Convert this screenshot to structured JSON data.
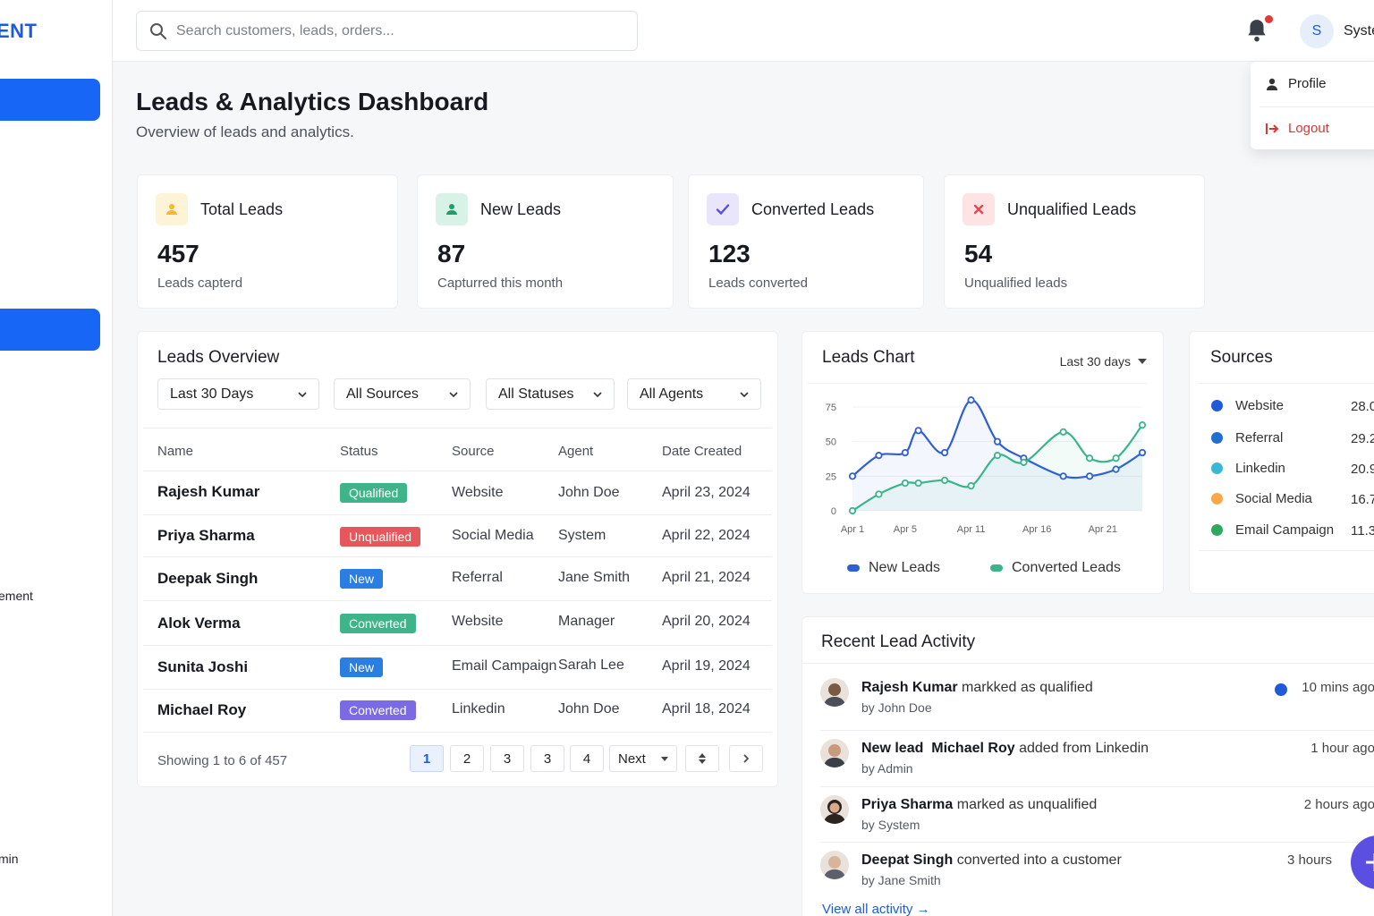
{
  "sidebar": {
    "brand": "ENT",
    "items": [
      {
        "label": "ement"
      },
      {
        "label": "min"
      }
    ]
  },
  "topbar": {
    "search_placeholder": "Search customers, leads, orders...",
    "avatar_initial": "S",
    "user_name": "Syste",
    "menu": {
      "profile": "Profile",
      "logout": "Logout"
    }
  },
  "header": {
    "title": "Leads & Analytics Dashboard",
    "subtitle": "Overview of leads and analytics."
  },
  "stats": [
    {
      "label": "Total Leads",
      "value": "457",
      "desc": "Leads capterd",
      "icon": "user-icon",
      "color": "#f5b82e"
    },
    {
      "label": "New Leads",
      "value": "87",
      "desc": "Capturred this month",
      "icon": "user-icon",
      "color": "#1e9e6a"
    },
    {
      "label": "Converted Leads",
      "value": "123",
      "desc": "Leads converted",
      "icon": "check-icon",
      "color": "#5a4fe0"
    },
    {
      "label": "Unqualified Leads",
      "value": "54",
      "desc": "Unqualified leads",
      "icon": "x-icon",
      "color": "#e5484d"
    }
  ],
  "overview": {
    "title": "Leads Overview",
    "filters": [
      "Last 30 Days",
      "All Sources",
      "All Statuses",
      "All Agents"
    ],
    "columns": [
      "Name",
      "Status",
      "Source",
      "Agent",
      "Date Created"
    ],
    "rows": [
      {
        "name": "Rajesh Kumar",
        "status": "Qualified",
        "status_color": "#3fb48a",
        "source": "Website",
        "agent": "John Doe",
        "date": "April 23, 2024"
      },
      {
        "name": "Priya Sharma",
        "status": "Unqualified",
        "status_color": "#e5575b",
        "source": "Social Media",
        "agent": "System",
        "date": "April 22, 2024"
      },
      {
        "name": "Deepak Singh",
        "status": "New",
        "status_color": "#2a7de1",
        "source": "Referral",
        "agent": "Jane Smith",
        "date": "April 21, 2024"
      },
      {
        "name": "Alok Verma",
        "status": "Converted",
        "status_color": "#3fb48a",
        "source": "Website",
        "agent": "Manager",
        "date": "April 20, 2024"
      },
      {
        "name": "Sunita Joshi",
        "status": "New",
        "status_color": "#2a7de1",
        "source": "Email Campaign",
        "agent": "Sarah Lee",
        "date": "April 19, 2024"
      },
      {
        "name": "Michael Roy",
        "status": "Converted",
        "status_color": "#7a6ae6",
        "source": "Linkedin",
        "agent": "John Doe",
        "date": "April 18, 2024"
      }
    ],
    "pager_text": "Showing 1 to 6 of 457",
    "pages": [
      "1",
      "2",
      "3",
      "3",
      "4"
    ],
    "next_label": "Next"
  },
  "chart_data": {
    "type": "line",
    "title": "Leads Chart",
    "range_label": "Last 30 days",
    "x_ticks": [
      "Apr 1",
      "Apr 5",
      "Apr 11",
      "Apr 16",
      "Apr 21"
    ],
    "y_ticks": [
      "75",
      "50",
      "25",
      "0"
    ],
    "ylim": [
      0,
      75
    ],
    "x": [
      1,
      3,
      5,
      6,
      8,
      10,
      12,
      14,
      17,
      19,
      21,
      23
    ],
    "series": [
      {
        "name": "New Leads",
        "color": "#2f5ed6",
        "values": [
          25,
          40,
          42,
          58,
          42,
          80,
          50,
          38,
          25,
          25,
          30,
          42
        ]
      },
      {
        "name": "Converted Leads",
        "color": "#3ab58a",
        "values": [
          0,
          12,
          20,
          20,
          22,
          18,
          40,
          35,
          57,
          38,
          38,
          62
        ]
      }
    ]
  },
  "sources": {
    "title": "Sources",
    "items": [
      {
        "name": "Website",
        "value": "28.0",
        "color": "#1f5bd9"
      },
      {
        "name": "Referral",
        "value": "29.2",
        "color": "#1f6fd1"
      },
      {
        "name": "Linkedin",
        "value": "20.9",
        "color": "#3bb7d6"
      },
      {
        "name": "Social Media",
        "value": "16.7",
        "color": "#f7a84a"
      },
      {
        "name": "Email Campaign",
        "value": "11.3",
        "color": "#2ea85f"
      }
    ]
  },
  "activity": {
    "title": "Recent Lead Activity",
    "items": [
      {
        "strong1": "Rajesh Kumar",
        "text": "markked as qualified",
        "by": "by John Doe",
        "time": "10 mins ago"
      },
      {
        "strong1": "New lead",
        "strong2": "Michael Roy",
        "text": "added from Linkedin",
        "by": "by Admin",
        "time": "1 hour ago"
      },
      {
        "strong1": "Priya Sharma",
        "text": "marked as unqualified",
        "by": "by System",
        "time": "2 hours ago"
      },
      {
        "strong1": "Deepat Singh",
        "text": "converted into a customer",
        "by": "by Jane Smith",
        "time": "3 hours"
      }
    ],
    "view_all": "View all activity →"
  }
}
